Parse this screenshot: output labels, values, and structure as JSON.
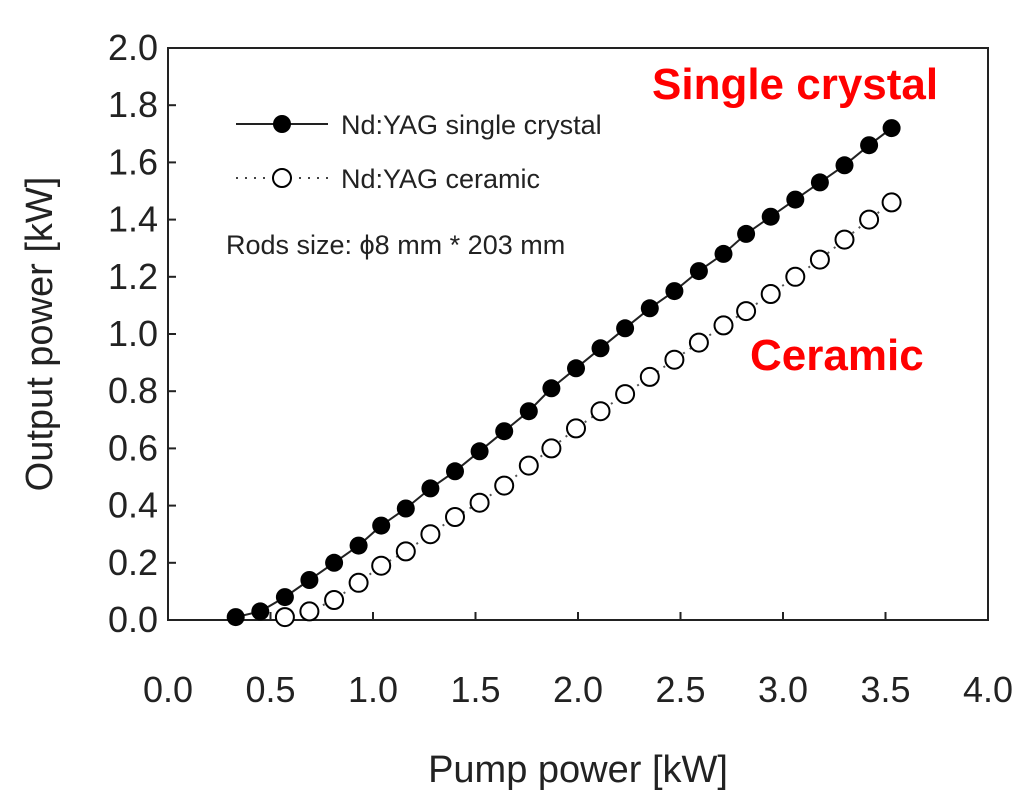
{
  "chart_data": {
    "type": "scatter",
    "title": "",
    "xlabel": "Pump power [kW]",
    "ylabel": "Output power [kW]",
    "xlim": [
      0.0,
      4.0
    ],
    "ylim": [
      0.0,
      2.0
    ],
    "x_ticks": [
      "0.0",
      "0.5",
      "1.0",
      "1.5",
      "2.0",
      "2.5",
      "3.0",
      "3.5",
      "4.0"
    ],
    "y_ticks": [
      "0.0",
      "0.2",
      "0.4",
      "0.6",
      "0.8",
      "1.0",
      "1.2",
      "1.4",
      "1.6",
      "1.8",
      "2.0"
    ],
    "grid": false,
    "legend_position": "top-left",
    "series": [
      {
        "name": "Nd:YAG single crystal",
        "marker": "filled-circle",
        "line": "solid",
        "x": [
          0.33,
          0.45,
          0.57,
          0.69,
          0.81,
          0.93,
          1.04,
          1.16,
          1.28,
          1.4,
          1.52,
          1.64,
          1.76,
          1.87,
          1.99,
          2.11,
          2.23,
          2.35,
          2.47,
          2.59,
          2.71,
          2.82,
          2.94,
          3.06,
          3.18,
          3.3,
          3.42,
          3.53
        ],
        "y": [
          0.01,
          0.03,
          0.08,
          0.14,
          0.2,
          0.26,
          0.33,
          0.39,
          0.46,
          0.52,
          0.59,
          0.66,
          0.73,
          0.81,
          0.88,
          0.95,
          1.02,
          1.09,
          1.15,
          1.22,
          1.28,
          1.35,
          1.41,
          1.47,
          1.53,
          1.59,
          1.66,
          1.72
        ]
      },
      {
        "name": "Nd:YAG ceramic",
        "marker": "open-circle",
        "line": "dotted",
        "x": [
          0.57,
          0.69,
          0.81,
          0.93,
          1.04,
          1.16,
          1.28,
          1.4,
          1.52,
          1.64,
          1.76,
          1.87,
          1.99,
          2.11,
          2.23,
          2.35,
          2.47,
          2.59,
          2.71,
          2.82,
          2.94,
          3.06,
          3.18,
          3.3,
          3.42,
          3.53
        ],
        "y": [
          0.01,
          0.03,
          0.07,
          0.13,
          0.19,
          0.24,
          0.3,
          0.36,
          0.41,
          0.47,
          0.54,
          0.6,
          0.67,
          0.73,
          0.79,
          0.85,
          0.91,
          0.97,
          1.03,
          1.08,
          1.14,
          1.2,
          1.26,
          1.33,
          1.4,
          1.46
        ]
      }
    ],
    "annotations": [
      {
        "text": "Rods size: ϕ8 mm * 203 mm",
        "color": "#222222"
      },
      {
        "text": "Single crystal",
        "color": "#ff0000"
      },
      {
        "text": "Ceramic",
        "color": "#ff0000"
      }
    ]
  }
}
